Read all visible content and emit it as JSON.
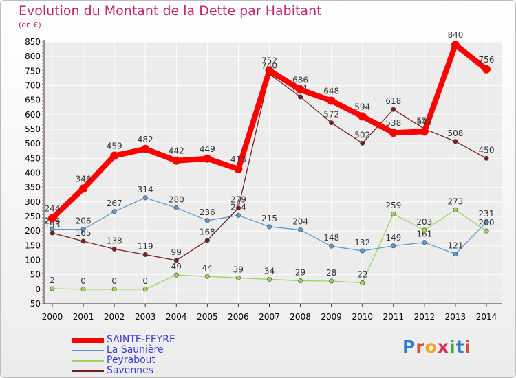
{
  "chart_data": {
    "type": "line",
    "title": "Evolution du Montant de la Dette par Habitant",
    "subtitle": "(en €)",
    "x": [
      2000,
      2001,
      2002,
      2003,
      2004,
      2005,
      2006,
      2007,
      2008,
      2009,
      2010,
      2011,
      2012,
      2013,
      2014
    ],
    "ylim": [
      -50,
      850
    ],
    "yticks": [
      -50,
      0,
      50,
      100,
      150,
      200,
      250,
      300,
      350,
      400,
      450,
      500,
      550,
      600,
      650,
      700,
      750,
      800,
      850
    ],
    "grid": true,
    "series": [
      {
        "name": "SAINTE-FEYRE",
        "color": "#ff0000",
        "values": [
          244,
          346,
          459,
          482,
          442,
          449,
          413,
          752,
          686,
          648,
          594,
          538,
          542,
          840,
          756
        ]
      },
      {
        "name": "La Saunière",
        "color": "#5b9bd5",
        "values": [
          206,
          206,
          267,
          314,
          280,
          236,
          254,
          215,
          204,
          148,
          132,
          149,
          161,
          121,
          231
        ]
      },
      {
        "name": "Peyrabout",
        "color": "#9bd65b",
        "values": [
          2,
          0,
          0,
          0,
          49,
          44,
          39,
          34,
          29,
          28,
          22,
          259,
          203,
          273,
          200
        ]
      },
      {
        "name": "Savennes",
        "color": "#7a1e1e",
        "values": [
          193,
          165,
          138,
          119,
          99,
          168,
          279,
          740,
          661,
          572,
          502,
          618,
          551,
          508,
          450
        ]
      }
    ],
    "legend_position": "bottom-left"
  },
  "logo_text": "Proxiti"
}
